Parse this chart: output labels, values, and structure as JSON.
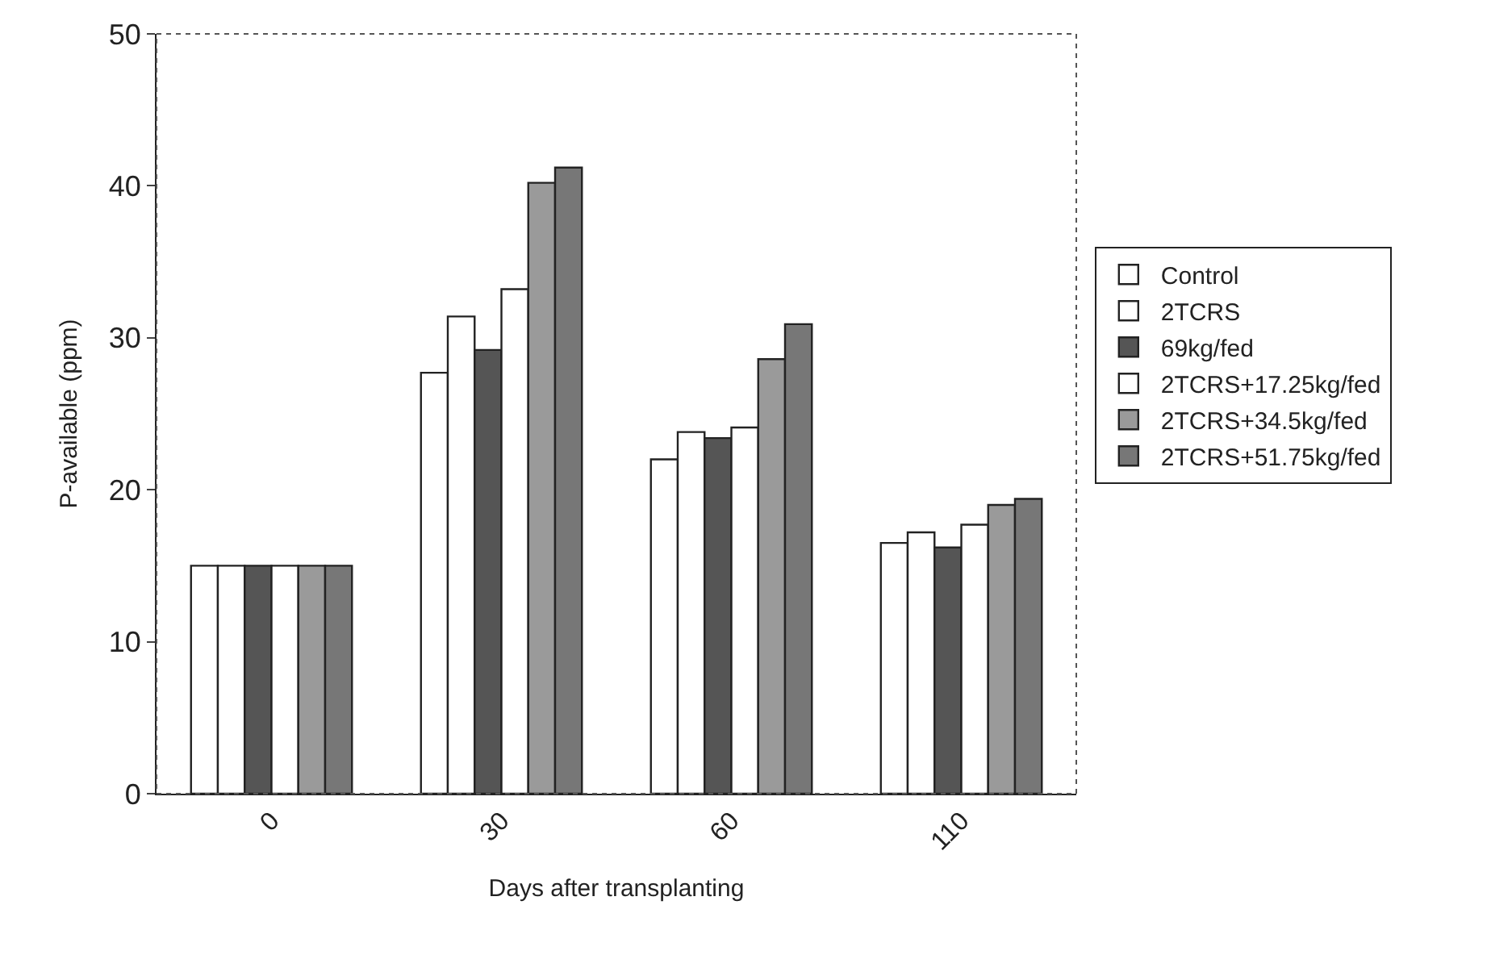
{
  "chart_data": {
    "type": "bar",
    "xlabel": "Days after transplanting",
    "ylabel": "P-available (ppm)",
    "categories": [
      "0",
      "30",
      "60",
      "110"
    ],
    "series": [
      {
        "name": "Control",
        "color": "#ffffff",
        "values": [
          15.0,
          27.7,
          22.0,
          16.5
        ]
      },
      {
        "name": "2TCRS",
        "color": "#ffffff",
        "values": [
          15.0,
          31.4,
          23.8,
          17.2
        ]
      },
      {
        "name": "69kg/fed",
        "color": "#555555",
        "values": [
          15.0,
          29.2,
          23.4,
          16.2
        ]
      },
      {
        "name": "2TCRS+17.25kg/fed",
        "color": "#ffffff",
        "values": [
          15.0,
          33.2,
          24.1,
          17.7
        ]
      },
      {
        "name": "2TCRS+34.5kg/fed",
        "color": "#9a9a9a",
        "values": [
          15.0,
          40.2,
          28.6,
          19.0
        ]
      },
      {
        "name": "2TCRS+51.75kg/fed",
        "color": "#777777",
        "values": [
          15.0,
          41.2,
          30.9,
          19.4
        ]
      }
    ],
    "ylim": [
      0,
      50
    ],
    "yticks": [
      0,
      10,
      20,
      30,
      40,
      50
    ],
    "legend": "right"
  }
}
